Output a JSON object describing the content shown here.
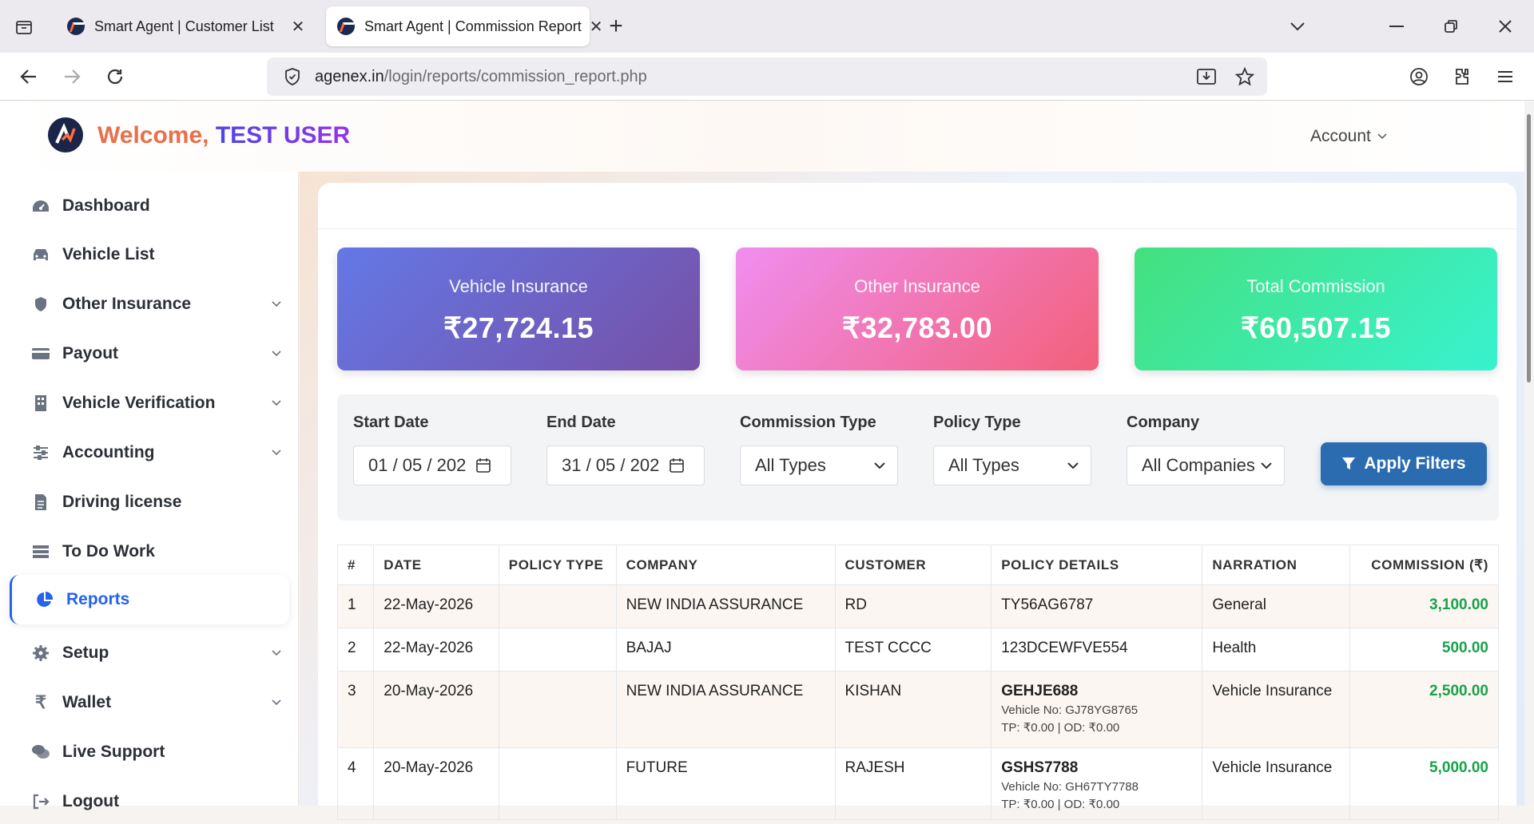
{
  "browser": {
    "tabs": [
      {
        "title": "Smart Agent | Customer List",
        "close": "✕"
      },
      {
        "title": "Smart Agent | Commission Report",
        "close": "✕"
      }
    ],
    "new_tab": "+",
    "url_domain": "agenex.in",
    "url_path": "/login/reports/commission_report.php"
  },
  "header": {
    "welcome": "Welcome,",
    "user": "TEST USER",
    "account": "Account"
  },
  "sidebar": {
    "items": [
      {
        "label": "Dashboard",
        "icon": "dashboard-icon",
        "has_chevron": false
      },
      {
        "label": "Vehicle List",
        "icon": "car-icon",
        "has_chevron": false
      },
      {
        "label": "Other Insurance",
        "icon": "shield-icon",
        "has_chevron": true
      },
      {
        "label": "Payout",
        "icon": "credit-card-icon",
        "has_chevron": true
      },
      {
        "label": "Vehicle Verification",
        "icon": "building-icon",
        "has_chevron": true
      },
      {
        "label": "Accounting",
        "icon": "sliders-icon",
        "has_chevron": true
      },
      {
        "label": "Driving license",
        "icon": "document-icon",
        "has_chevron": false
      },
      {
        "label": "To Do Work",
        "icon": "list-icon",
        "has_chevron": false
      },
      {
        "label": "Reports",
        "icon": "pie-chart-icon",
        "has_chevron": false,
        "active": true
      },
      {
        "label": "Setup",
        "icon": "gear-icon",
        "has_chevron": true
      },
      {
        "label": "Wallet",
        "icon": "rupee-icon",
        "has_chevron": true
      },
      {
        "label": "Live Support",
        "icon": "chat-icon",
        "has_chevron": false
      },
      {
        "label": "Logout",
        "icon": "logout-icon",
        "has_chevron": false
      }
    ]
  },
  "cards": [
    {
      "label": "Vehicle Insurance",
      "value": "₹27,724.15"
    },
    {
      "label": "Other Insurance",
      "value": "₹32,783.00"
    },
    {
      "label": "Total Commission",
      "value": "₹60,507.15"
    }
  ],
  "filters": {
    "start_date": {
      "label": "Start Date",
      "value": "01 / 05 / 202"
    },
    "end_date": {
      "label": "End Date",
      "value": "31 / 05 / 202"
    },
    "commission_type": {
      "label": "Commission Type",
      "value": "All Types"
    },
    "policy_type": {
      "label": "Policy Type",
      "value": "All Types"
    },
    "company": {
      "label": "Company",
      "value": "All Companies"
    },
    "apply": "Apply Filters"
  },
  "table": {
    "columns": [
      "#",
      "DATE",
      "POLICY TYPE",
      "COMPANY",
      "CUSTOMER",
      "POLICY DETAILS",
      "NARRATION",
      "COMMISSION (₹)"
    ],
    "rows": [
      {
        "no": "1",
        "date": "22-May-2026",
        "policy_type": "",
        "company": "NEW INDIA ASSURANCE",
        "customer": "RD",
        "policy": "TY56AG6787",
        "vehicle": "",
        "tpod": "",
        "narration": "General",
        "commission": "3,100.00"
      },
      {
        "no": "2",
        "date": "22-May-2026",
        "policy_type": "",
        "company": "BAJAJ",
        "customer": "TEST CCCC",
        "policy": "123DCEWFVE554",
        "vehicle": "",
        "tpod": "",
        "narration": "Health",
        "commission": "500.00"
      },
      {
        "no": "3",
        "date": "20-May-2026",
        "policy_type": "",
        "company": "NEW INDIA ASSURANCE",
        "customer": "KISHAN",
        "policy": "GEHJE688",
        "vehicle": "Vehicle No: GJ78YG8765",
        "tpod": "TP: ₹0.00 | OD: ₹0.00",
        "narration": "Vehicle Insurance",
        "commission": "2,500.00"
      },
      {
        "no": "4",
        "date": "20-May-2026",
        "policy_type": "",
        "company": "FUTURE",
        "customer": "RAJESH",
        "policy": "GSHS7788",
        "vehicle": "Vehicle No: GH67TY7788",
        "tpod": "TP: ₹0.00 | OD: ₹0.00",
        "narration": "Vehicle Insurance",
        "commission": "5,000.00"
      }
    ]
  }
}
